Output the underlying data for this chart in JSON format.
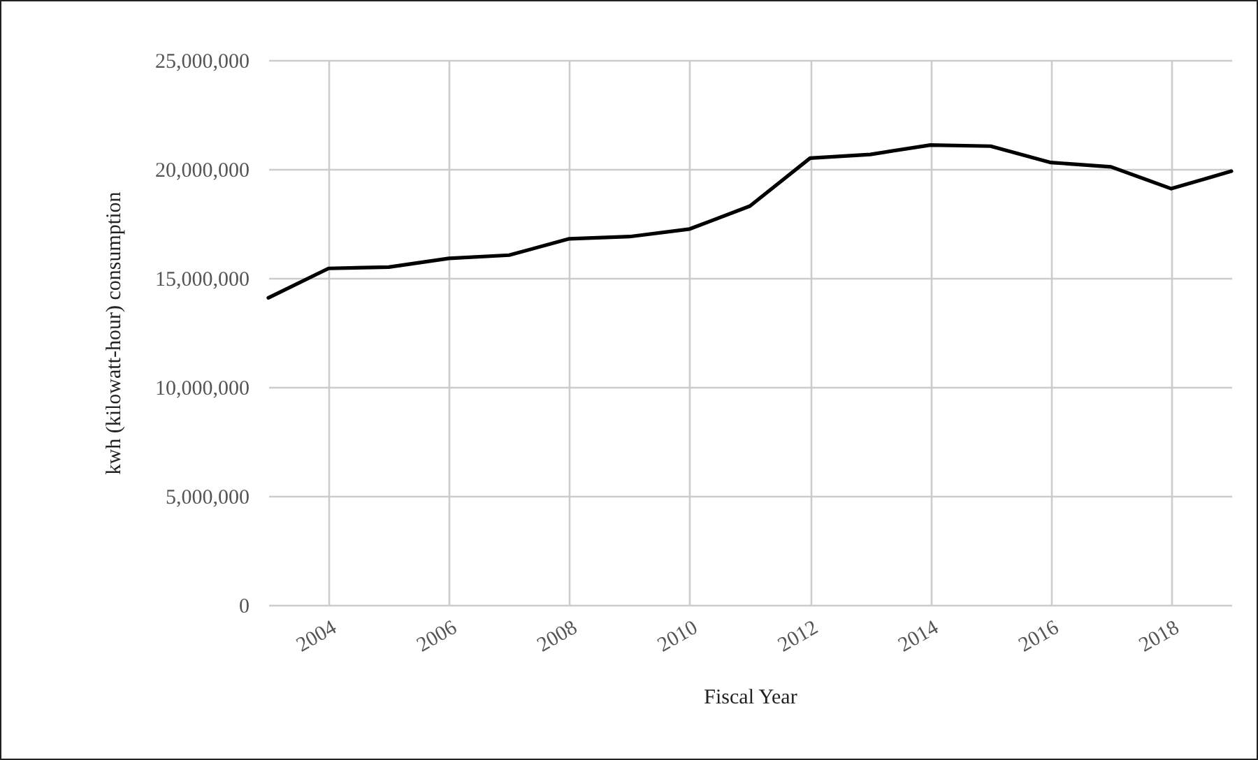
{
  "chart_data": {
    "type": "line",
    "xlabel": "Fiscal Year",
    "ylabel": "kwh (kilowatt-hour) consumption",
    "x": [
      2003,
      2004,
      2005,
      2006,
      2007,
      2008,
      2009,
      2010,
      2011,
      2012,
      2013,
      2014,
      2015,
      2016,
      2017,
      2018,
      2019
    ],
    "series": [
      {
        "color": "#000000",
        "values": [
          14090000,
          15440000,
          15500000,
          15900000,
          16050000,
          16800000,
          16900000,
          17250000,
          18300000,
          20500000,
          20670000,
          21100000,
          21050000,
          20300000,
          20100000,
          19100000,
          19900000
        ]
      }
    ],
    "xlim": [
      2003,
      2019
    ],
    "xticks": [
      2004,
      2006,
      2008,
      2010,
      2012,
      2014,
      2016,
      2018
    ],
    "ylim": [
      0,
      25000000
    ],
    "yticks": [
      0,
      {
        "value": 5000000,
        "label": "5,000,000"
      },
      {
        "value": 10000000,
        "label": "10,000,000"
      },
      {
        "value": 15000000,
        "label": "15,000,000"
      },
      {
        "value": 20000000,
        "label": "20,000,000"
      },
      {
        "value": 25000000,
        "label": "25,000,000"
      }
    ],
    "grid": true,
    "legend": false,
    "marker": "none",
    "line_style": "solid"
  }
}
